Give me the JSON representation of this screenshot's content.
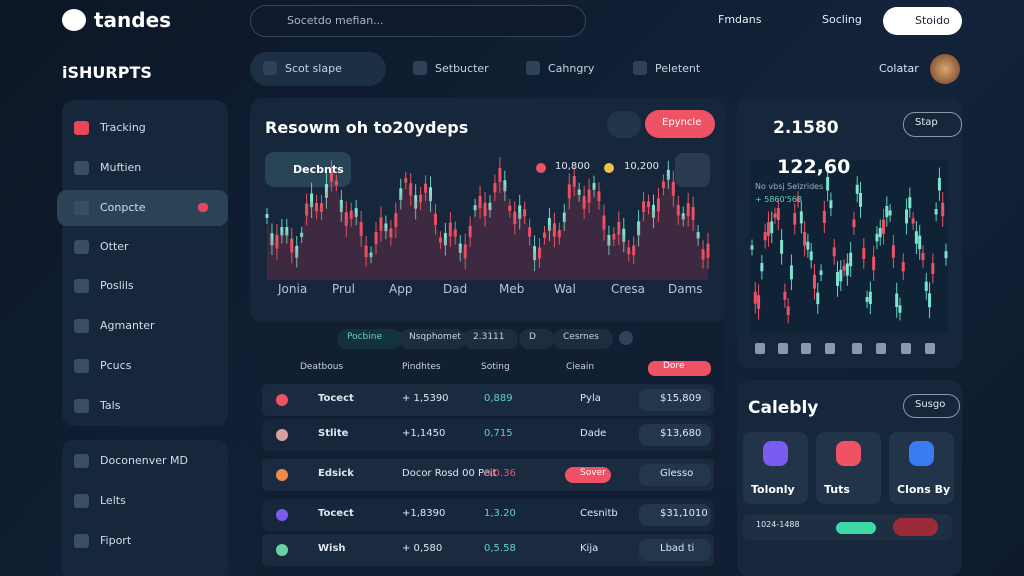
{
  "header": {
    "brand": "tandes",
    "search_placeholder": "Socetdo mefian...",
    "nav": [
      "Fmdans",
      "Socling"
    ],
    "button": "Stoido"
  },
  "sidebar": {
    "title": "iSHURPTS",
    "items": [
      "Tracking",
      "Muftien",
      "Conpcte",
      "Otter",
      "Poslils",
      "Agmanter",
      "Pcucs",
      "Tals"
    ],
    "items2": [
      "Doconenver MD",
      "Lelts",
      "Fiport"
    ]
  },
  "tabs": [
    "Scot slape",
    "Setbucter",
    "Cahngry",
    "Peletent"
  ],
  "user": {
    "name": "Colatar"
  },
  "main_chart": {
    "title": "Resowm oh to20ydeps",
    "button": "Epyncle",
    "pill": "Decbnts",
    "legend": [
      "10,800",
      "10,200"
    ],
    "x_labels": [
      "Jonia",
      "Prul",
      "App",
      "Dad",
      "Meb",
      "Wal",
      "Cresa",
      "Dams"
    ]
  },
  "table": {
    "filters": [
      "Pocbine",
      "Nsqphomet",
      "2.3111",
      "D",
      "Cesrnes"
    ],
    "columns": [
      "Deatbous",
      "Pindhtes",
      "Soting",
      "Cieain",
      "Dore"
    ],
    "rows": [
      {
        "name": "Tocect",
        "price": "+ 1,5390",
        "change": "0,889",
        "status": "Pyla",
        "value": "$15,809"
      },
      {
        "name": "Stlite",
        "price": "+1,1450",
        "change": "0,715",
        "status": "Dade",
        "value": "$13,680"
      },
      {
        "name": "Edsick",
        "price": "Docor Rosd 00 Peit",
        "change": "0,0.36",
        "status": "Sover",
        "value": "Glesso"
      },
      {
        "name": "Tocect",
        "price": "+1,8390",
        "change": "1,3.20",
        "status": "Cesnitb",
        "value": "$31,1010"
      },
      {
        "name": "Wish",
        "price": "+ 0,580",
        "change": "0,5.58",
        "status": "Kija",
        "value": "Lbad ti"
      }
    ]
  },
  "ticker": {
    "price": "2.1580",
    "button": "Stap",
    "value": "122,60",
    "sub": [
      "No vbsj Selzrides",
      "+ 5860'563"
    ]
  },
  "category": {
    "title": "Calebly",
    "button": "Susgo",
    "cards": [
      "Tolonly",
      "Tuts",
      "Clons By"
    ],
    "footer": "1024-1488"
  }
}
